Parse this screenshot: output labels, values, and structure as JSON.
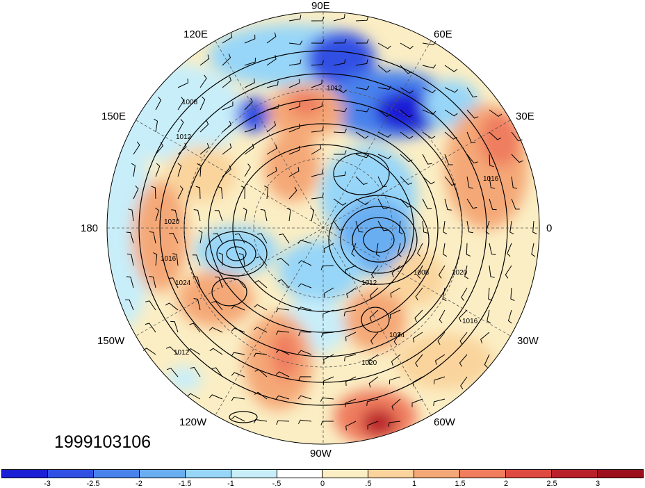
{
  "map": {
    "projection": "north-polar-stereographic",
    "longitude_labels": {
      "e90": "90E",
      "e120": "120E",
      "e60": "60E",
      "e150": "150E",
      "e30": "30E",
      "w180": "180",
      "zero": "0",
      "w150": "150W",
      "w30": "30W",
      "w120": "120W",
      "w60": "60W",
      "w90": "90W"
    },
    "contour_labels": [
      "1008",
      "1012",
      "1016",
      "1020",
      "1024"
    ],
    "date_stamp": "1999103106"
  },
  "colorbar": {
    "tick_labels": [
      "-3",
      "-2.5",
      "-2",
      "-1.5",
      "-1",
      "-.5",
      "0",
      ".5",
      "1",
      "1.5",
      "2",
      "2.5",
      "3"
    ],
    "colors": [
      "#1b1fd6",
      "#3050e4",
      "#4a82ec",
      "#6aaef2",
      "#97d6f8",
      "#c8eefa",
      "#ffffff",
      "#fbeec4",
      "#fad49c",
      "#f5a877",
      "#ef7d5e",
      "#de4a3f",
      "#b9202a",
      "#9c101c"
    ]
  }
}
